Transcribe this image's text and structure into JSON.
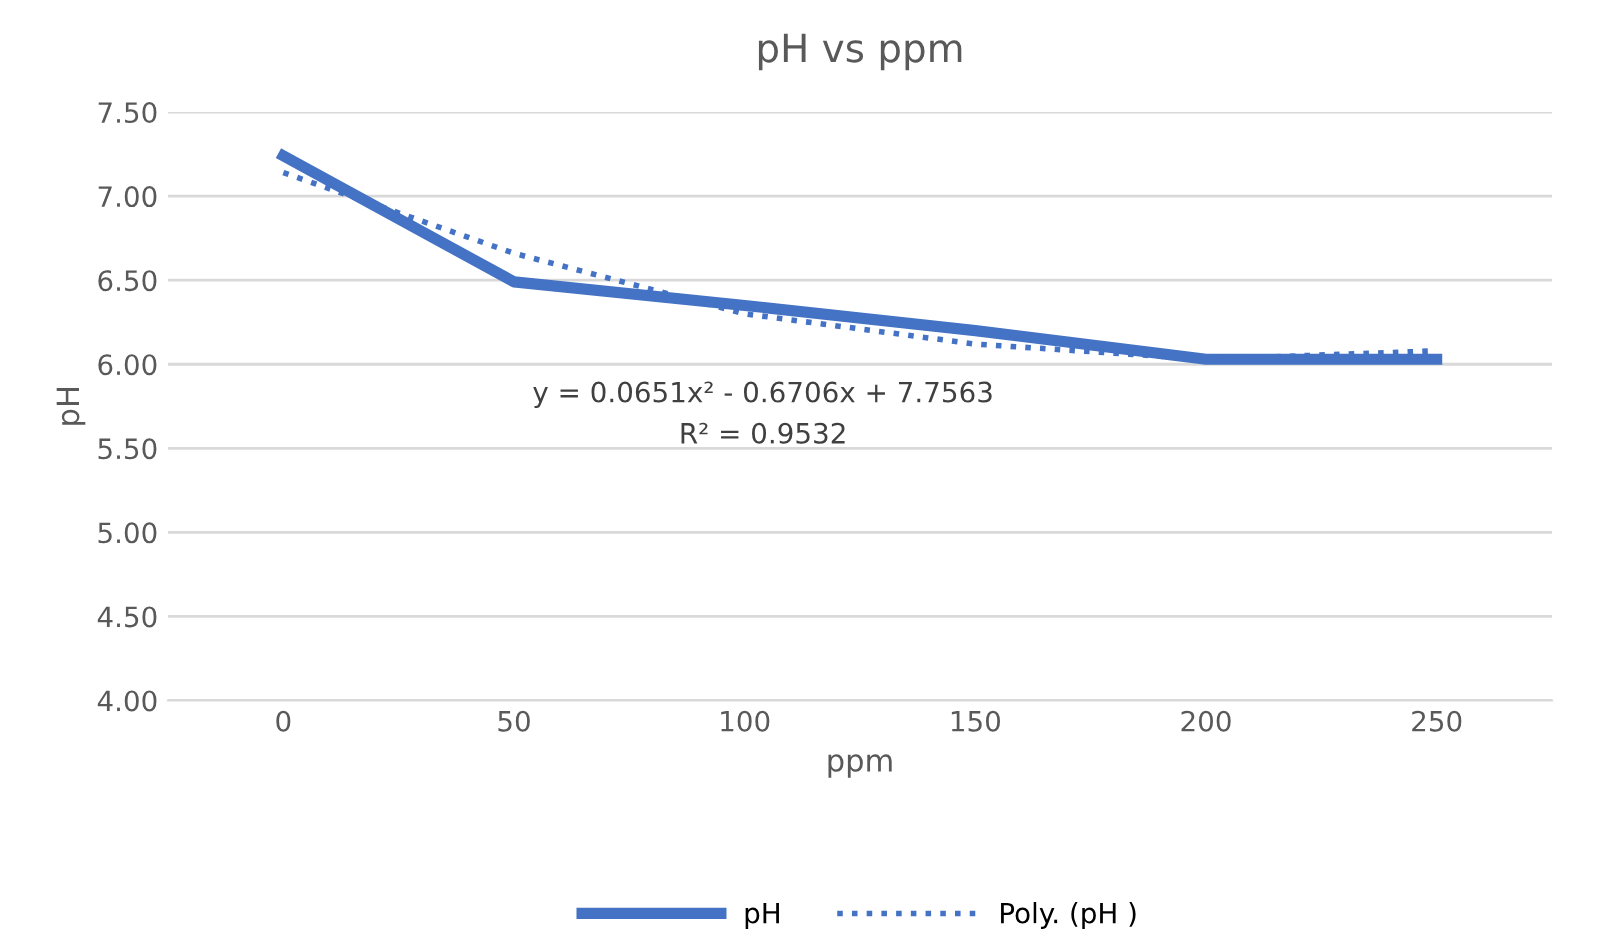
{
  "chart_data": {
    "type": "line",
    "title": "pH vs ppm",
    "xlabel": "ppm",
    "ylabel": "pH",
    "categories": [
      "0",
      "50",
      "100",
      "150",
      "200",
      "250"
    ],
    "series": [
      {
        "name": "pH",
        "color": "#4472c4",
        "values": [
          7.24,
          6.49,
          6.35,
          6.2,
          6.03,
          6.03
        ],
        "line_style": "solid"
      },
      {
        "name": "Poly. (pH )",
        "color": "#4472c4",
        "values": [
          7.14,
          6.66,
          6.3,
          6.12,
          6.03,
          6.08
        ],
        "line_style": "dotted"
      }
    ],
    "ylim": [
      4.0,
      7.5
    ],
    "yticks": [
      {
        "value": 4.0,
        "label": "4.00"
      },
      {
        "value": 4.5,
        "label": "4.50"
      },
      {
        "value": 5.0,
        "label": "5.00"
      },
      {
        "value": 5.5,
        "label": "5.50"
      },
      {
        "value": 6.0,
        "label": "6.00"
      },
      {
        "value": 6.5,
        "label": "6.50"
      },
      {
        "value": 7.0,
        "label": "7.00"
      },
      {
        "value": 7.5,
        "label": "7.50"
      }
    ],
    "annotations": [
      "y = 0.0651x² - 0.6706x + 7.7563",
      "R² = 0.9532"
    ],
    "grid": "y",
    "legend": "bottom",
    "marker": "none"
  }
}
